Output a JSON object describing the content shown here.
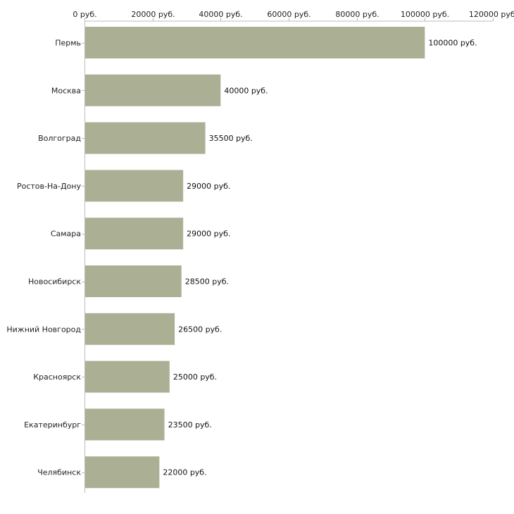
{
  "chart_data": {
    "type": "bar",
    "orientation": "horizontal",
    "title": "",
    "xlabel": "",
    "ylabel": "",
    "categories": [
      "Пермь",
      "Москва",
      "Волгоград",
      "Ростов-На-Дону",
      "Самара",
      "Новосибирск",
      "Нижний Новгород",
      "Красноярск",
      "Екатеринбург",
      "Челябинск"
    ],
    "values": [
      100000,
      40000,
      35500,
      29000,
      29000,
      28500,
      26500,
      25000,
      23500,
      22000
    ],
    "value_labels": [
      "100000 руб.",
      "40000 руб.",
      "35500 руб.",
      "29000 руб.",
      "29000 руб.",
      "28500 руб.",
      "26500 руб.",
      "25000 руб.",
      "23500 руб.",
      "22000 руб."
    ],
    "xlim": [
      0,
      120000
    ],
    "x_ticks": [
      0,
      20000,
      40000,
      60000,
      80000,
      100000,
      120000
    ],
    "x_tick_labels": [
      "0 руб.",
      "20000 руб.",
      "40000 руб.",
      "60000 руб.",
      "80000 руб.",
      "100000 руб.",
      "120000 руб."
    ],
    "axis_position": "top",
    "grid": false,
    "legend": "none",
    "colors": {
      "bar": "#abb095",
      "axis": "#bbbbbb",
      "text": "#222222"
    }
  }
}
